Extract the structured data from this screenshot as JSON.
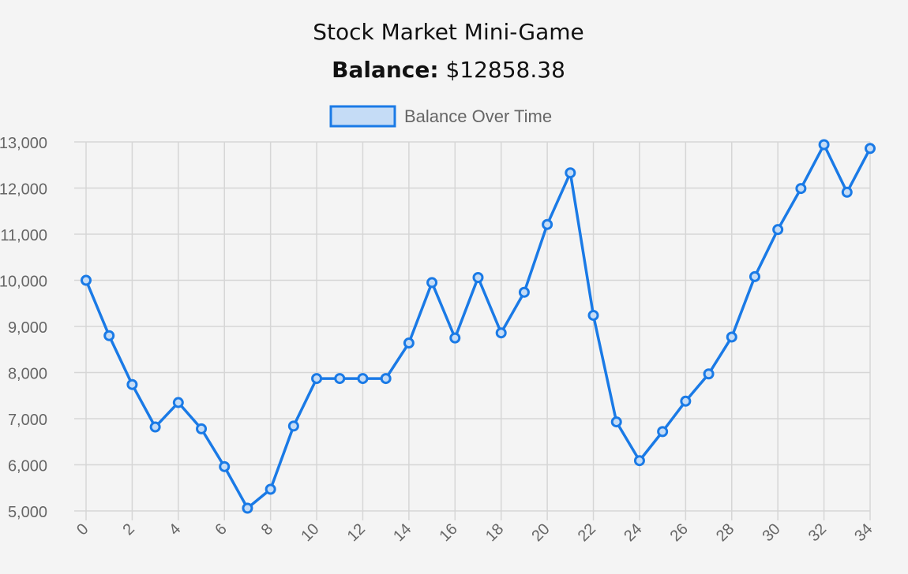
{
  "header": {
    "title": "Stock Market Mini-Game",
    "balance_label": "Balance:",
    "balance_value": "$12858.38"
  },
  "colors": {
    "line": "#1a7ae6",
    "legend_fill": "#c5dcf6",
    "grid": "#d6d6d6",
    "background": "#f4f4f4"
  },
  "chart_data": {
    "type": "line",
    "title": "",
    "xlabel": "",
    "ylabel": "",
    "legend": [
      "Balance Over Time"
    ],
    "legend_position": "top-center",
    "grid": true,
    "x": [
      0,
      1,
      2,
      3,
      4,
      5,
      6,
      7,
      8,
      9,
      10,
      11,
      12,
      13,
      14,
      15,
      16,
      17,
      18,
      19,
      20,
      21,
      22,
      23,
      24,
      25,
      26,
      27,
      28,
      29,
      30,
      31,
      32,
      33,
      34
    ],
    "x_tick_labels": [
      "0",
      "2",
      "4",
      "6",
      "8",
      "10",
      "12",
      "14",
      "16",
      "18",
      "20",
      "22",
      "24",
      "26",
      "28",
      "30",
      "32",
      "34"
    ],
    "y_tick_labels": [
      "5,000",
      "6,000",
      "7,000",
      "8,000",
      "9,000",
      "10,000",
      "11,000",
      "12,000",
      "13,000"
    ],
    "ylim": [
      5000,
      13000
    ],
    "xlim": [
      0,
      34
    ],
    "series": [
      {
        "name": "Balance Over Time",
        "values": [
          10000,
          8800,
          7740,
          6820,
          7350,
          6780,
          5960,
          5060,
          5470,
          6840,
          7870,
          7870,
          7870,
          7870,
          8640,
          9950,
          8750,
          10060,
          8860,
          9740,
          11210,
          12330,
          9240,
          6930,
          6090,
          6720,
          7380,
          7970,
          8770,
          10080,
          11100,
          11990,
          12940,
          11910,
          12858.38
        ]
      }
    ]
  }
}
